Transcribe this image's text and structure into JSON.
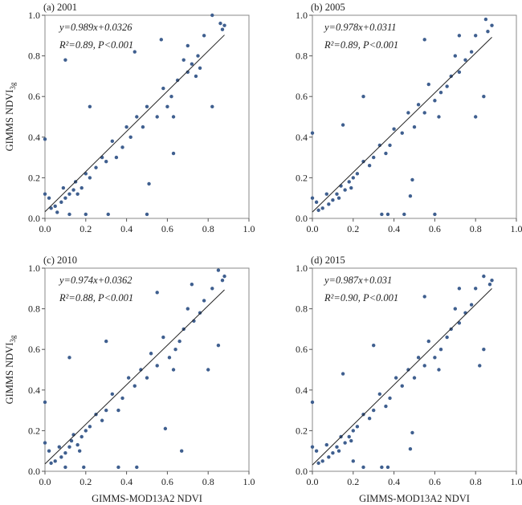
{
  "chart_data": [
    {
      "type": "scatter",
      "title": "(a) 2001",
      "equation": "y=0.989x+0.0326",
      "slope": 0.989,
      "intercept": 0.0326,
      "r2_text": "R²=0.89, P<0.001",
      "xlabel": "",
      "ylabel": "GIMMS NDVI3g",
      "xlim": [
        0,
        1
      ],
      "ylim": [
        0,
        1
      ],
      "points": [
        [
          0.88,
          0.95
        ],
        [
          0.87,
          0.93
        ],
        [
          0.86,
          0.96
        ],
        [
          0.82,
          1.0
        ],
        [
          0.78,
          0.9
        ],
        [
          0.75,
          0.8
        ],
        [
          0.72,
          0.76
        ],
        [
          0.7,
          0.72
        ],
        [
          0.68,
          0.78
        ],
        [
          0.74,
          0.7
        ],
        [
          0.65,
          0.68
        ],
        [
          0.62,
          0.6
        ],
        [
          0.6,
          0.55
        ],
        [
          0.63,
          0.5
        ],
        [
          0.58,
          0.64
        ],
        [
          0.55,
          0.5
        ],
        [
          0.5,
          0.55
        ],
        [
          0.48,
          0.45
        ],
        [
          0.45,
          0.5
        ],
        [
          0.42,
          0.4
        ],
        [
          0.4,
          0.45
        ],
        [
          0.38,
          0.35
        ],
        [
          0.35,
          0.3
        ],
        [
          0.33,
          0.38
        ],
        [
          0.3,
          0.28
        ],
        [
          0.28,
          0.3
        ],
        [
          0.25,
          0.25
        ],
        [
          0.22,
          0.2
        ],
        [
          0.2,
          0.22
        ],
        [
          0.18,
          0.15
        ],
        [
          0.15,
          0.18
        ],
        [
          0.12,
          0.12
        ],
        [
          0.1,
          0.1
        ],
        [
          0.08,
          0.08
        ],
        [
          0.05,
          0.06
        ],
        [
          0.03,
          0.05
        ],
        [
          0.02,
          0.1
        ],
        [
          0.0,
          0.12
        ],
        [
          0.1,
          0.78
        ],
        [
          0.51,
          0.17
        ],
        [
          0.5,
          0.02
        ],
        [
          0.31,
          0.02
        ],
        [
          0.82,
          0.55
        ],
        [
          0.63,
          0.32
        ],
        [
          0.0,
          0.39
        ],
        [
          0.44,
          0.82
        ],
        [
          0.12,
          0.02
        ],
        [
          0.2,
          0.02
        ],
        [
          0.22,
          0.55
        ],
        [
          0.57,
          0.88
        ],
        [
          0.7,
          0.85
        ],
        [
          0.76,
          0.74
        ],
        [
          0.14,
          0.14
        ],
        [
          0.16,
          0.12
        ],
        [
          0.06,
          0.03
        ],
        [
          0.09,
          0.15
        ]
      ]
    },
    {
      "type": "scatter",
      "title": "(b) 2005",
      "equation": "y=0.978x+0.0311",
      "slope": 0.978,
      "intercept": 0.0311,
      "r2_text": "R²=0.89, P<0.001",
      "xlabel": "",
      "ylabel": "",
      "xlim": [
        0,
        1
      ],
      "ylim": [
        0,
        1
      ],
      "points": [
        [
          0.88,
          0.95
        ],
        [
          0.86,
          0.92
        ],
        [
          0.85,
          0.98
        ],
        [
          0.8,
          0.9
        ],
        [
          0.78,
          0.82
        ],
        [
          0.75,
          0.78
        ],
        [
          0.72,
          0.72
        ],
        [
          0.7,
          0.8
        ],
        [
          0.68,
          0.7
        ],
        [
          0.66,
          0.65
        ],
        [
          0.63,
          0.62
        ],
        [
          0.6,
          0.58
        ],
        [
          0.62,
          0.5
        ],
        [
          0.57,
          0.66
        ],
        [
          0.55,
          0.52
        ],
        [
          0.52,
          0.56
        ],
        [
          0.5,
          0.45
        ],
        [
          0.47,
          0.52
        ],
        [
          0.44,
          0.42
        ],
        [
          0.4,
          0.44
        ],
        [
          0.38,
          0.36
        ],
        [
          0.36,
          0.32
        ],
        [
          0.33,
          0.36
        ],
        [
          0.3,
          0.3
        ],
        [
          0.28,
          0.26
        ],
        [
          0.25,
          0.28
        ],
        [
          0.22,
          0.22
        ],
        [
          0.2,
          0.2
        ],
        [
          0.18,
          0.18
        ],
        [
          0.16,
          0.14
        ],
        [
          0.14,
          0.16
        ],
        [
          0.12,
          0.12
        ],
        [
          0.1,
          0.09
        ],
        [
          0.08,
          0.07
        ],
        [
          0.05,
          0.05
        ],
        [
          0.03,
          0.04
        ],
        [
          0.02,
          0.08
        ],
        [
          0.0,
          0.1
        ],
        [
          0.0,
          0.42
        ],
        [
          0.49,
          0.19
        ],
        [
          0.48,
          0.11
        ],
        [
          0.37,
          0.02
        ],
        [
          0.34,
          0.02
        ],
        [
          0.45,
          0.02
        ],
        [
          0.6,
          0.02
        ],
        [
          0.8,
          0.5
        ],
        [
          0.15,
          0.46
        ],
        [
          0.25,
          0.6
        ],
        [
          0.55,
          0.88
        ],
        [
          0.72,
          0.9
        ],
        [
          0.84,
          0.6
        ],
        [
          0.13,
          0.1
        ],
        [
          0.07,
          0.12
        ],
        [
          0.19,
          0.15
        ]
      ]
    },
    {
      "type": "scatter",
      "title": "(c) 2010",
      "equation": "y=0.974x+0.0362",
      "slope": 0.974,
      "intercept": 0.0362,
      "r2_text": "R²=0.88, P<0.001",
      "xlabel": "GIMMS-MOD13A2 NDVI",
      "ylabel": "GIMMS NDVI3g",
      "xlim": [
        0,
        1
      ],
      "ylim": [
        0,
        1
      ],
      "points": [
        [
          0.88,
          0.96
        ],
        [
          0.87,
          0.94
        ],
        [
          0.85,
          0.99
        ],
        [
          0.82,
          0.9
        ],
        [
          0.78,
          0.84
        ],
        [
          0.76,
          0.78
        ],
        [
          0.73,
          0.74
        ],
        [
          0.7,
          0.8
        ],
        [
          0.68,
          0.7
        ],
        [
          0.66,
          0.64
        ],
        [
          0.64,
          0.6
        ],
        [
          0.61,
          0.56
        ],
        [
          0.63,
          0.5
        ],
        [
          0.58,
          0.66
        ],
        [
          0.55,
          0.52
        ],
        [
          0.52,
          0.58
        ],
        [
          0.5,
          0.46
        ],
        [
          0.47,
          0.5
        ],
        [
          0.44,
          0.42
        ],
        [
          0.41,
          0.46
        ],
        [
          0.38,
          0.36
        ],
        [
          0.36,
          0.3
        ],
        [
          0.33,
          0.38
        ],
        [
          0.3,
          0.3
        ],
        [
          0.28,
          0.25
        ],
        [
          0.25,
          0.28
        ],
        [
          0.22,
          0.22
        ],
        [
          0.2,
          0.2
        ],
        [
          0.18,
          0.17
        ],
        [
          0.16,
          0.13
        ],
        [
          0.14,
          0.18
        ],
        [
          0.12,
          0.12
        ],
        [
          0.1,
          0.09
        ],
        [
          0.08,
          0.07
        ],
        [
          0.05,
          0.05
        ],
        [
          0.03,
          0.04
        ],
        [
          0.02,
          0.1
        ],
        [
          0.0,
          0.14
        ],
        [
          0.59,
          0.21
        ],
        [
          0.67,
          0.1
        ],
        [
          0.36,
          0.02
        ],
        [
          0.45,
          0.02
        ],
        [
          0.19,
          0.02
        ],
        [
          0.1,
          0.02
        ],
        [
          0.8,
          0.5
        ],
        [
          0.0,
          0.34
        ],
        [
          0.12,
          0.56
        ],
        [
          0.3,
          0.64
        ],
        [
          0.55,
          0.88
        ],
        [
          0.72,
          0.92
        ],
        [
          0.85,
          0.62
        ],
        [
          0.13,
          0.15
        ],
        [
          0.07,
          0.12
        ],
        [
          0.17,
          0.1
        ]
      ]
    },
    {
      "type": "scatter",
      "title": "(d) 2015",
      "equation": "y=0.987x+0.031",
      "slope": 0.987,
      "intercept": 0.031,
      "r2_text": "R²=0.90, P<0.001",
      "xlabel": "GIMMS-MOD13A2 NDVI",
      "ylabel": "",
      "xlim": [
        0,
        1
      ],
      "ylim": [
        0,
        1
      ],
      "points": [
        [
          0.88,
          0.94
        ],
        [
          0.87,
          0.92
        ],
        [
          0.84,
          0.96
        ],
        [
          0.8,
          0.9
        ],
        [
          0.78,
          0.82
        ],
        [
          0.75,
          0.78
        ],
        [
          0.72,
          0.73
        ],
        [
          0.7,
          0.8
        ],
        [
          0.68,
          0.7
        ],
        [
          0.66,
          0.66
        ],
        [
          0.63,
          0.6
        ],
        [
          0.6,
          0.56
        ],
        [
          0.62,
          0.5
        ],
        [
          0.57,
          0.64
        ],
        [
          0.55,
          0.52
        ],
        [
          0.52,
          0.56
        ],
        [
          0.5,
          0.46
        ],
        [
          0.47,
          0.5
        ],
        [
          0.44,
          0.42
        ],
        [
          0.41,
          0.46
        ],
        [
          0.38,
          0.36
        ],
        [
          0.36,
          0.32
        ],
        [
          0.33,
          0.38
        ],
        [
          0.3,
          0.3
        ],
        [
          0.28,
          0.26
        ],
        [
          0.25,
          0.28
        ],
        [
          0.22,
          0.22
        ],
        [
          0.2,
          0.2
        ],
        [
          0.18,
          0.17
        ],
        [
          0.16,
          0.14
        ],
        [
          0.14,
          0.17
        ],
        [
          0.12,
          0.12
        ],
        [
          0.1,
          0.09
        ],
        [
          0.08,
          0.07
        ],
        [
          0.05,
          0.05
        ],
        [
          0.03,
          0.04
        ],
        [
          0.02,
          0.1
        ],
        [
          0.0,
          0.12
        ],
        [
          0.49,
          0.19
        ],
        [
          0.48,
          0.11
        ],
        [
          0.34,
          0.02
        ],
        [
          0.37,
          0.02
        ],
        [
          0.25,
          0.02
        ],
        [
          0.2,
          0.05
        ],
        [
          0.82,
          0.52
        ],
        [
          0.0,
          0.34
        ],
        [
          0.15,
          0.48
        ],
        [
          0.3,
          0.62
        ],
        [
          0.55,
          0.86
        ],
        [
          0.72,
          0.9
        ],
        [
          0.84,
          0.6
        ],
        [
          0.13,
          0.1
        ],
        [
          0.07,
          0.13
        ],
        [
          0.19,
          0.15
        ]
      ]
    }
  ],
  "style": {
    "point_color": "#3f5f8f",
    "line_color": "#222222"
  }
}
